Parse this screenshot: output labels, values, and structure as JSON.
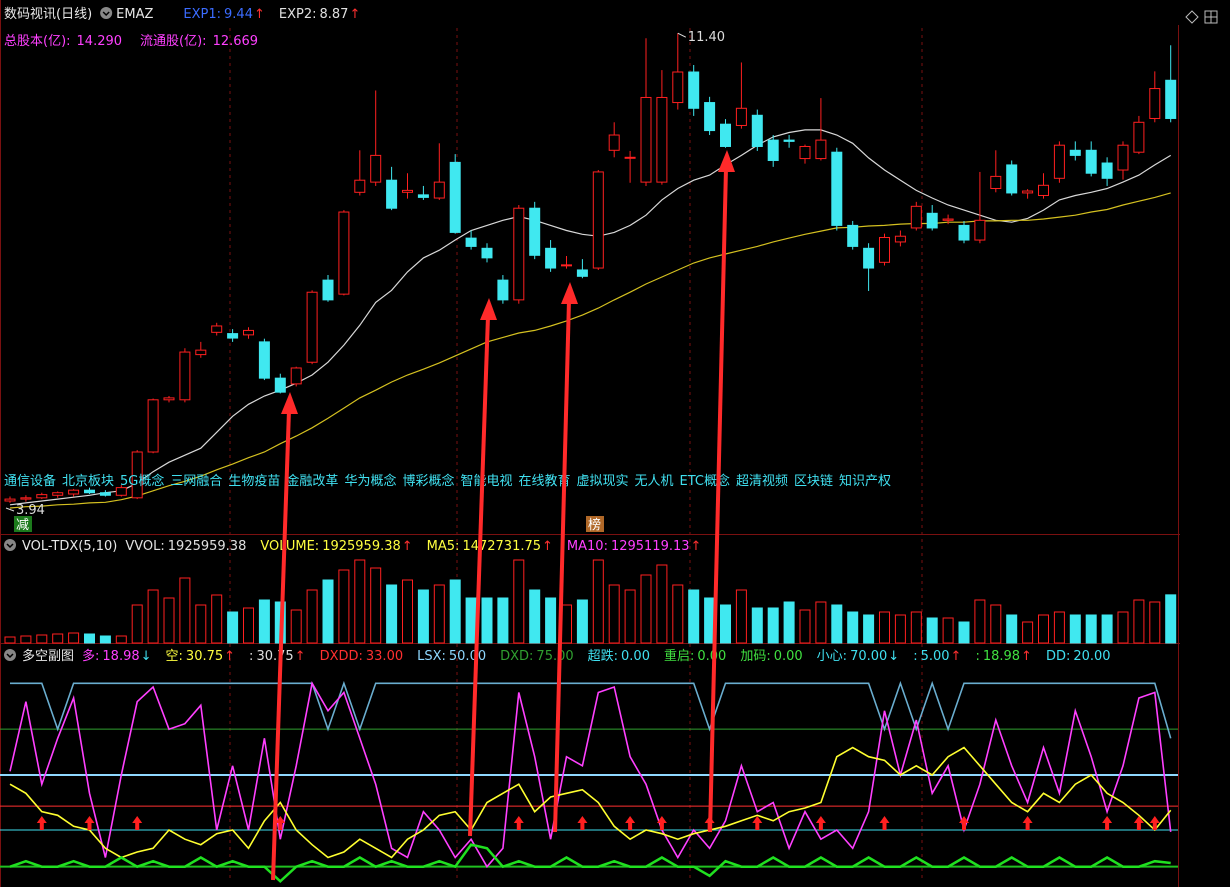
{
  "chart_data": [
    {
      "type": "candlestick",
      "title": "数码视讯(日线)",
      "indicator": "EMAZ",
      "stats": [
        {
          "name": "EXP1:",
          "value": 9.44,
          "arrow": "↑",
          "color": "#3b6cff",
          "arrow_color": "#ff3030"
        },
        {
          "name": "EXP2:",
          "value": 8.87,
          "arrow": "↑",
          "color": "#e0e0e0",
          "arrow_color": "#ff3030"
        }
      ],
      "info": [
        {
          "name": "总股本(亿):",
          "value": 14.29,
          "label": "14.290"
        },
        {
          "name": "流通股(亿):",
          "value": 12.669
        }
      ],
      "info_color": "#ff40ff",
      "ylim": [
        3.83,
        11.45
      ],
      "up_color": "#ff2020",
      "down_color": "#40e8f0",
      "open": [
        4.05,
        4.08,
        4.1,
        4.14,
        4.16,
        4.22,
        4.18,
        4.14,
        4.1,
        4.82,
        5.64,
        5.64,
        6.35,
        6.7,
        6.68,
        6.66,
        6.55,
        5.98,
        5.89,
        6.23,
        7.52,
        7.3,
        8.9,
        9.06,
        9.09,
        8.9,
        8.86,
        8.81,
        9.37,
        8.18,
        8.02,
        7.52,
        7.21,
        8.65,
        8.02,
        7.76,
        7.68,
        7.71,
        9.56,
        9.45,
        9.06,
        9.06,
        10.31,
        10.79,
        10.31,
        9.97,
        9.95,
        10.11,
        9.72,
        9.72,
        9.43,
        9.43,
        9.53,
        8.38,
        8.02,
        7.8,
        8.12,
        8.34,
        8.57,
        8.46,
        8.38,
        8.15,
        8.96,
        9.33,
        8.89,
        8.85,
        9.12,
        9.56,
        9.56,
        9.36,
        9.25,
        9.53,
        10.06,
        10.66
      ],
      "high": [
        4.12,
        4.14,
        4.18,
        4.2,
        4.24,
        4.26,
        4.22,
        4.3,
        4.85,
        5.66,
        5.7,
        6.45,
        6.55,
        6.85,
        6.75,
        6.78,
        6.6,
        6.05,
        6.16,
        7.36,
        7.6,
        8.62,
        9.56,
        10.5,
        9.3,
        9.2,
        9.0,
        9.67,
        9.5,
        8.3,
        8.1,
        7.6,
        8.7,
        8.75,
        8.15,
        7.9,
        7.85,
        9.25,
        10.0,
        9.55,
        11.32,
        10.82,
        11.4,
        10.9,
        10.4,
        10.05,
        10.94,
        10.2,
        9.8,
        9.8,
        9.65,
        10.38,
        9.6,
        8.45,
        8.1,
        8.25,
        8.3,
        8.75,
        8.7,
        8.55,
        8.45,
        9.22,
        9.56,
        9.4,
        8.95,
        9.2,
        9.7,
        9.7,
        9.7,
        9.45,
        9.7,
        10.1,
        10.8,
        11.21
      ],
      "low": [
        4.02,
        4.04,
        4.08,
        4.1,
        4.12,
        4.16,
        4.12,
        4.12,
        4.08,
        4.8,
        5.6,
        5.6,
        6.3,
        6.65,
        6.55,
        6.6,
        5.95,
        5.74,
        5.85,
        6.2,
        7.18,
        7.28,
        8.85,
        9.0,
        8.62,
        8.8,
        8.78,
        8.78,
        8.25,
        8.0,
        7.8,
        7.15,
        7.15,
        7.85,
        7.65,
        7.7,
        7.55,
        7.68,
        9.45,
        9.05,
        9.0,
        9.02,
        10.2,
        10.1,
        9.8,
        9.6,
        9.9,
        9.55,
        9.3,
        9.6,
        9.35,
        9.4,
        8.3,
        8.0,
        7.35,
        7.75,
        8.05,
        8.3,
        8.3,
        8.4,
        8.1,
        8.1,
        8.9,
        8.85,
        8.8,
        8.8,
        9.05,
        9.4,
        9.15,
        9.0,
        9.1,
        9.5,
        10.0,
        10.0
      ],
      "close": [
        4.08,
        4.1,
        4.15,
        4.18,
        4.22,
        4.18,
        4.14,
        4.26,
        4.82,
        5.64,
        5.67,
        6.39,
        6.42,
        6.8,
        6.61,
        6.73,
        5.98,
        5.76,
        6.14,
        7.33,
        7.21,
        8.59,
        9.09,
        9.48,
        8.65,
        8.93,
        8.82,
        9.06,
        8.27,
        8.05,
        7.87,
        7.21,
        8.65,
        7.91,
        7.71,
        7.76,
        7.58,
        9.22,
        9.8,
        9.45,
        10.39,
        10.39,
        10.79,
        10.22,
        9.87,
        9.62,
        10.22,
        9.62,
        9.4,
        9.7,
        9.62,
        9.72,
        8.38,
        8.05,
        7.71,
        8.19,
        8.21,
        8.68,
        8.34,
        8.48,
        8.15,
        8.46,
        9.15,
        8.89,
        8.92,
        9.01,
        9.64,
        9.48,
        9.2,
        9.12,
        9.64,
        10.0,
        10.53,
        10.06
      ],
      "series": [
        {
          "color": "#d8d8d8",
          "values": [
            3.99,
            4.02,
            4.05,
            4.08,
            4.11,
            4.14,
            4.18,
            4.21,
            4.33,
            4.51,
            4.66,
            4.77,
            4.88,
            5.13,
            5.38,
            5.57,
            5.7,
            5.79,
            5.9,
            6.03,
            6.23,
            6.5,
            6.81,
            7.17,
            7.36,
            7.65,
            7.87,
            7.99,
            8.15,
            8.3,
            8.38,
            8.46,
            8.52,
            8.46,
            8.38,
            8.3,
            8.24,
            8.21,
            8.27,
            8.38,
            8.54,
            8.78,
            8.96,
            9.09,
            9.17,
            9.33,
            9.48,
            9.64,
            9.77,
            9.84,
            9.88,
            9.88,
            9.8,
            9.67,
            9.44,
            9.25,
            9.09,
            8.93,
            8.81,
            8.7,
            8.62,
            8.54,
            8.46,
            8.43,
            8.49,
            8.62,
            8.78,
            8.85,
            8.9,
            8.96,
            9.06,
            9.17,
            9.33,
            9.48
          ]
        },
        {
          "color": "#d4c020",
          "values": [
            3.94,
            3.96,
            3.97,
            3.99,
            4.0,
            4.02,
            4.03,
            4.07,
            4.13,
            4.21,
            4.29,
            4.36,
            4.44,
            4.54,
            4.63,
            4.73,
            4.82,
            4.95,
            5.07,
            5.2,
            5.35,
            5.51,
            5.67,
            5.79,
            5.92,
            6.03,
            6.12,
            6.22,
            6.33,
            6.44,
            6.55,
            6.62,
            6.69,
            6.73,
            6.8,
            6.88,
            6.97,
            7.08,
            7.21,
            7.33,
            7.46,
            7.57,
            7.68,
            7.79,
            7.87,
            7.93,
            7.99,
            8.05,
            8.12,
            8.18,
            8.24,
            8.29,
            8.34,
            8.35,
            8.37,
            8.38,
            8.4,
            8.41,
            8.41,
            8.43,
            8.43,
            8.45,
            8.45,
            8.46,
            8.46,
            8.48,
            8.51,
            8.54,
            8.59,
            8.63,
            8.7,
            8.76,
            8.82,
            8.89
          ]
        }
      ],
      "high_mark": {
        "value": 11.4,
        "label": "11.40"
      },
      "low_mark": 3.94,
      "concepts": [
        "通信设备",
        "北京板块",
        "5G概念",
        "三网融合",
        "生物疫苗",
        "金融改革",
        "华为概念",
        "博彩概念",
        "智能电视",
        "在线教育",
        "虚拟现实",
        "无人机",
        "ETC概念",
        "超清视频",
        "区块链",
        "知识产权"
      ],
      "concept_color": "#40e0f0",
      "badges": [
        {
          "text": "减",
          "color": "#1c7a1c"
        },
        {
          "text": "榜",
          "color": "#b06828"
        }
      ]
    },
    {
      "type": "bar",
      "title": "VOL-TDX(5,10)",
      "stats": [
        {
          "name": "VVOL:",
          "value": 1925959.38,
          "color": "#e0e0e0"
        },
        {
          "name": "VOLUME:",
          "value": 1925959.38,
          "arrow": "↑",
          "color": "#ffff40",
          "arrow_color": "#ff3030"
        },
        {
          "name": "MA5:",
          "value": 1472731.75,
          "arrow": "↑",
          "color": "#ffff40",
          "arrow_color": "#ff3030"
        },
        {
          "name": "MA10:",
          "value": 1295119.13,
          "arrow": "↑",
          "color": "#ff40ff",
          "arrow_color": "#ff3030"
        }
      ],
      "ylim": [
        0,
        3520000
      ],
      "values": [
        240000,
        280000,
        320000,
        360000,
        400000,
        360000,
        280000,
        280000,
        1520000,
        2120000,
        1800000,
        2600000,
        1520000,
        1920000,
        1240000,
        1400000,
        1720000,
        1640000,
        1320000,
        2120000,
        2520000,
        2920000,
        3320000,
        3000000,
        2320000,
        2520000,
        2120000,
        2320000,
        2520000,
        1800000,
        1800000,
        1800000,
        3320000,
        2120000,
        1800000,
        1520000,
        1720000,
        3320000,
        2320000,
        2120000,
        2720000,
        3120000,
        2320000,
        2120000,
        1800000,
        1520000,
        2120000,
        1400000,
        1400000,
        1640000,
        1320000,
        1640000,
        1520000,
        1240000,
        1120000,
        1240000,
        1120000,
        1240000,
        1000000,
        1000000,
        840000,
        1720000,
        1520000,
        1120000,
        840000,
        1120000,
        1240000,
        1120000,
        1120000,
        1120000,
        1240000,
        1720000,
        1640000,
        1925959.38
      ]
    },
    {
      "type": "line",
      "title": "多空副图",
      "stats": [
        {
          "name": "多:",
          "value": 18.98,
          "arrow": "↓",
          "color": "#ff40ff",
          "arrow_color": "#40e0f0"
        },
        {
          "name": "空:",
          "value": 30.75,
          "arrow": "↑",
          "color": "#ffff40",
          "arrow_color": "#ff3030"
        },
        {
          "name": ":",
          "value": 30.75,
          "arrow": "↑",
          "color": "#e0e0e0",
          "arrow_color": "#ff3030"
        },
        {
          "name": "DXDD:",
          "value": 33,
          "label": "33.00",
          "color": "#ff3030",
          "line": true
        },
        {
          "name": "LSX:",
          "value": 50,
          "label": "50.00",
          "color": "#8fd8ff",
          "line": true
        },
        {
          "name": "DXD:",
          "value": 75,
          "label": "75.00",
          "color": "#30a030",
          "line": true
        },
        {
          "name": "超跌:",
          "value": 0,
          "label": "0.00",
          "color": "#40e0f0"
        },
        {
          "name": "重启:",
          "value": 0,
          "label": "0.00",
          "color": "#40e040"
        },
        {
          "name": "加码:",
          "value": 0,
          "label": "0.00",
          "color": "#40e040"
        },
        {
          "name": "小心:",
          "value": 70,
          "label": "70.00",
          "arrow": "↓",
          "color": "#40e0f0",
          "arrow_color": "#40e0f0"
        },
        {
          "name": ":",
          "value": 5,
          "label": "5.00",
          "arrow": "↑",
          "color": "#40e0f0",
          "arrow_color": "#ff3030"
        },
        {
          "name": ":",
          "value": 18.98,
          "arrow": "↑",
          "color": "#40e040",
          "arrow_color": "#ff3030"
        },
        {
          "name": "DD:",
          "value": 20,
          "label": "20.00",
          "color": "#40e0f0",
          "line": true
        }
      ],
      "ylim": [
        -10,
        110
      ],
      "series": [
        {
          "color": "#6aaed0",
          "values": [
            100,
            100,
            100,
            75,
            100,
            100,
            100,
            100,
            100,
            100,
            100,
            100,
            100,
            100,
            100,
            100,
            100,
            100,
            100,
            100,
            75,
            100,
            75,
            100,
            100,
            100,
            100,
            100,
            100,
            100,
            100,
            100,
            100,
            100,
            100,
            100,
            100,
            100,
            100,
            100,
            100,
            100,
            100,
            100,
            75,
            100,
            100,
            100,
            100,
            100,
            100,
            100,
            100,
            100,
            100,
            75,
            100,
            75,
            100,
            75,
            100,
            100,
            100,
            100,
            100,
            100,
            100,
            100,
            100,
            100,
            100,
            100,
            100,
            70
          ]
        },
        {
          "color": "#ff40ff",
          "values": [
            52,
            90,
            45,
            70,
            92,
            40,
            5,
            50,
            90,
            98,
            75,
            78,
            88,
            20,
            55,
            20,
            70,
            15,
            55,
            100,
            85,
            95,
            70,
            45,
            10,
            5,
            30,
            20,
            5,
            15,
            0,
            10,
            95,
            60,
            15,
            60,
            55,
            95,
            98,
            60,
            45,
            20,
            5,
            20,
            10,
            25,
            55,
            30,
            35,
            10,
            30,
            15,
            20,
            10,
            30,
            85,
            50,
            80,
            40,
            55,
            20,
            45,
            80,
            55,
            35,
            65,
            40,
            85,
            60,
            30,
            55,
            92,
            95,
            18.98
          ]
        },
        {
          "color": "#ffff30",
          "values": [
            45,
            40,
            30,
            28,
            22,
            20,
            10,
            5,
            8,
            10,
            20,
            15,
            12,
            18,
            20,
            10,
            25,
            35,
            20,
            12,
            5,
            8,
            15,
            10,
            5,
            15,
            20,
            28,
            30,
            20,
            35,
            40,
            45,
            30,
            38,
            40,
            42,
            35,
            22,
            15,
            20,
            18,
            15,
            18,
            20,
            22,
            25,
            28,
            25,
            30,
            32,
            35,
            60,
            65,
            60,
            58,
            50,
            55,
            50,
            60,
            65,
            55,
            45,
            35,
            30,
            40,
            35,
            45,
            50,
            40,
            35,
            28,
            20,
            30.75
          ]
        },
        {
          "color": "#20e020",
          "values": [
            0,
            3,
            0,
            0,
            3,
            0,
            0,
            5,
            0,
            3,
            0,
            0,
            5,
            0,
            3,
            0,
            0,
            -8,
            0,
            3,
            0,
            0,
            5,
            0,
            3,
            0,
            0,
            3,
            0,
            12,
            10,
            0,
            3,
            0,
            0,
            5,
            0,
            0,
            3,
            0,
            0,
            5,
            0,
            0,
            -5,
            3,
            0,
            0,
            5,
            0,
            0,
            5,
            0,
            0,
            5,
            0,
            0,
            5,
            0,
            0,
            5,
            0,
            0,
            5,
            0,
            0,
            5,
            0,
            0,
            5,
            0,
            0,
            3,
            2
          ]
        }
      ],
      "signals": [
        2,
        5,
        8,
        17,
        32,
        36,
        39,
        41,
        44,
        47,
        51,
        55,
        60,
        64,
        69,
        71,
        72
      ],
      "signal_color": "#ff2020"
    }
  ]
}
